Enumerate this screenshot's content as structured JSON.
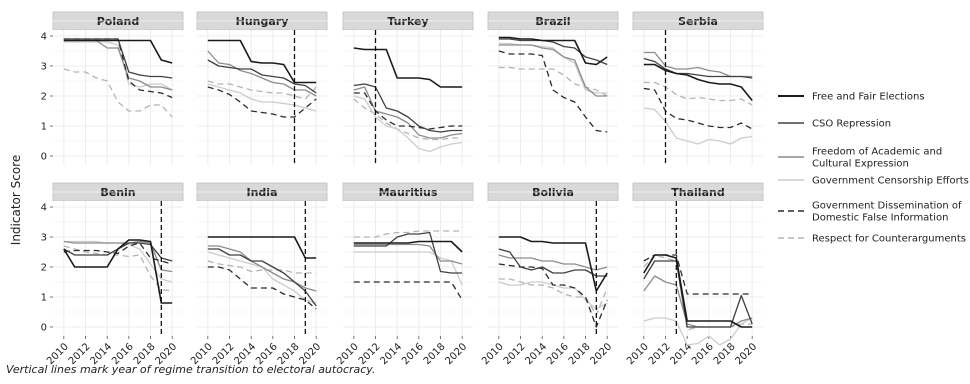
{
  "caption": "Vertical lines mark year of regime transition to electoral autocracy.",
  "colors": {
    "free_fair": "#1a1a1a",
    "cso": "#404040",
    "academic": "#8c8c8c",
    "censorship": "#cccccc",
    "dissemination": "#2b2b2b",
    "counterargs": "#b3b3b3"
  },
  "chart_data": {
    "type": "line",
    "ylabel": "Indicator Score",
    "x_ticks": [
      2010,
      2012,
      2014,
      2016,
      2018,
      2020
    ],
    "y_ticks": [
      0,
      1,
      2,
      3,
      4
    ],
    "ylim": [
      -0.3,
      4.2
    ],
    "xlim": [
      2009,
      2021
    ],
    "grid": true,
    "legend_position": "right",
    "legend": [
      {
        "key": "free_fair",
        "label_lines": [
          "Free and Fair Elections"
        ],
        "dash": "solid"
      },
      {
        "key": "cso",
        "label_lines": [
          "CSO Repression"
        ],
        "dash": "solid"
      },
      {
        "key": "academic",
        "label_lines": [
          "Freedom of Academic and",
          "Cultural Expression"
        ],
        "dash": "solid"
      },
      {
        "key": "censorship",
        "label_lines": [
          "Government Censorship Efforts"
        ],
        "dash": "solid"
      },
      {
        "key": "dissemination",
        "label_lines": [
          "Government Dissemination of",
          "Domestic False Information"
        ],
        "dash": "dashed"
      },
      {
        "key": "counterargs",
        "label_lines": [
          "Respect for Counterarguments"
        ],
        "dash": "dashed"
      }
    ],
    "x": [
      2010,
      2011,
      2012,
      2013,
      2014,
      2015,
      2016,
      2017,
      2018,
      2019,
      2020
    ],
    "panels": [
      {
        "country": "Poland",
        "transition": null,
        "series": {
          "free_fair": [
            3.85,
            3.85,
            3.85,
            3.85,
            3.85,
            3.85,
            3.85,
            3.85,
            3.85,
            3.2,
            3.1
          ],
          "cso": [
            3.9,
            3.9,
            3.9,
            3.9,
            3.9,
            3.9,
            2.8,
            2.7,
            2.65,
            2.65,
            2.6
          ],
          "academic": [
            3.85,
            3.85,
            3.85,
            3.85,
            3.6,
            3.6,
            2.6,
            2.5,
            2.3,
            2.3,
            2.2
          ],
          "censorship": [
            3.8,
            3.8,
            3.8,
            3.8,
            3.8,
            3.7,
            2.4,
            2.3,
            2.4,
            2.4,
            2.2
          ],
          "dissemination": [
            3.9,
            3.9,
            3.9,
            3.9,
            3.9,
            3.9,
            2.5,
            2.2,
            2.15,
            2.1,
            1.95
          ],
          "counterargs": [
            2.9,
            2.8,
            2.8,
            2.6,
            2.5,
            1.8,
            1.5,
            1.5,
            1.7,
            1.7,
            1.3
          ]
        }
      },
      {
        "country": "Hungary",
        "transition": 2018,
        "series": {
          "free_fair": [
            3.85,
            3.85,
            3.85,
            3.85,
            3.15,
            3.1,
            3.1,
            3.05,
            2.45,
            2.45,
            2.45
          ],
          "cso": [
            3.2,
            3.0,
            2.95,
            2.9,
            2.9,
            2.7,
            2.65,
            2.6,
            2.4,
            2.35,
            2.1
          ],
          "academic": [
            3.5,
            3.1,
            3.05,
            2.85,
            2.75,
            2.6,
            2.45,
            2.4,
            2.2,
            2.2,
            2.0
          ],
          "censorship": [
            2.4,
            2.3,
            2.2,
            2.1,
            1.9,
            1.8,
            1.8,
            1.75,
            1.7,
            1.6,
            1.5
          ],
          "dissemination": [
            2.3,
            2.2,
            2.05,
            1.8,
            1.5,
            1.45,
            1.4,
            1.3,
            1.3,
            1.6,
            1.9
          ],
          "counterargs": [
            2.5,
            2.4,
            2.4,
            2.3,
            2.2,
            2.15,
            2.1,
            2.1,
            2.0,
            1.9,
            2.3
          ]
        }
      },
      {
        "country": "Turkey",
        "transition": 2012,
        "series": {
          "free_fair": [
            3.6,
            3.55,
            3.55,
            3.55,
            2.6,
            2.6,
            2.6,
            2.55,
            2.3,
            2.3,
            2.3
          ],
          "cso": [
            2.35,
            2.4,
            2.3,
            1.6,
            1.5,
            1.3,
            1.0,
            0.85,
            0.8,
            0.85,
            0.85
          ],
          "academic": [
            2.2,
            2.3,
            1.5,
            1.4,
            1.3,
            1.1,
            0.7,
            0.6,
            0.6,
            0.7,
            0.75
          ],
          "censorship": [
            2.0,
            1.9,
            1.3,
            1.0,
            0.9,
            0.6,
            0.25,
            0.15,
            0.3,
            0.4,
            0.45
          ],
          "dissemination": [
            2.1,
            2.1,
            1.5,
            1.2,
            1.0,
            1.0,
            0.95,
            0.9,
            0.95,
            1.0,
            1.0
          ],
          "counterargs": [
            1.9,
            1.6,
            1.4,
            1.1,
            0.9,
            0.75,
            0.6,
            0.55,
            0.55,
            0.6,
            0.6
          ]
        }
      },
      {
        "country": "Brazil",
        "transition": null,
        "series": {
          "free_fair": [
            3.95,
            3.95,
            3.9,
            3.9,
            3.85,
            3.85,
            3.85,
            3.85,
            3.1,
            3.05,
            3.3
          ],
          "cso": [
            3.9,
            3.9,
            3.85,
            3.85,
            3.85,
            3.8,
            3.65,
            3.6,
            3.3,
            3.2,
            3.05
          ],
          "academic": [
            3.7,
            3.7,
            3.7,
            3.7,
            3.6,
            3.55,
            3.3,
            3.2,
            2.3,
            2.0,
            2.0
          ],
          "censorship": [
            3.75,
            3.75,
            3.7,
            3.7,
            3.65,
            3.6,
            3.3,
            3.1,
            2.2,
            2.1,
            2.1
          ],
          "dissemination": [
            3.5,
            3.4,
            3.4,
            3.4,
            3.35,
            2.2,
            1.95,
            1.8,
            1.3,
            0.85,
            0.8
          ],
          "counterargs": [
            2.95,
            2.95,
            2.9,
            2.9,
            2.9,
            2.9,
            2.7,
            2.4,
            2.3,
            2.2,
            2.0
          ]
        }
      },
      {
        "country": "Serbia",
        "transition": 2012,
        "series": {
          "free_fair": [
            3.05,
            3.05,
            2.85,
            2.75,
            2.7,
            2.55,
            2.45,
            2.4,
            2.4,
            2.3,
            1.85
          ],
          "cso": [
            3.25,
            3.15,
            2.9,
            2.75,
            2.75,
            2.7,
            2.65,
            2.65,
            2.65,
            2.65,
            2.6
          ],
          "academic": [
            3.45,
            3.45,
            3.0,
            2.9,
            2.9,
            2.95,
            2.85,
            2.8,
            2.65,
            2.65,
            2.65
          ],
          "censorship": [
            1.6,
            1.55,
            1.15,
            0.6,
            0.5,
            0.4,
            0.55,
            0.5,
            0.4,
            0.6,
            0.65
          ],
          "dissemination": [
            2.25,
            2.2,
            1.5,
            1.25,
            1.2,
            1.1,
            1.0,
            0.95,
            0.95,
            1.1,
            0.9
          ],
          "counterargs": [
            2.45,
            2.45,
            2.3,
            2.05,
            1.9,
            1.95,
            1.9,
            1.85,
            1.85,
            1.9,
            1.7
          ]
        }
      },
      {
        "country": "Benin",
        "transition": 2019,
        "series": {
          "free_fair": [
            2.6,
            2.0,
            2.0,
            2.0,
            2.0,
            2.6,
            2.9,
            2.9,
            2.85,
            0.8,
            0.8
          ],
          "cso": [
            2.6,
            2.4,
            2.4,
            2.4,
            2.4,
            2.6,
            2.8,
            2.8,
            2.75,
            2.3,
            2.2
          ],
          "academic": [
            2.85,
            2.8,
            2.8,
            2.8,
            2.8,
            2.8,
            2.8,
            2.85,
            2.8,
            1.9,
            1.85
          ],
          "censorship": [
            2.85,
            2.85,
            2.85,
            2.85,
            2.8,
            2.8,
            2.75,
            2.6,
            2.1,
            1.6,
            1.5
          ],
          "dissemination": [
            2.5,
            2.55,
            2.55,
            2.55,
            2.5,
            2.45,
            2.7,
            2.8,
            2.3,
            2.2,
            2.1
          ],
          "counterargs": [
            2.7,
            2.6,
            2.5,
            2.45,
            2.4,
            2.4,
            2.35,
            2.4,
            1.7,
            1.25,
            1.2
          ]
        }
      },
      {
        "country": "India",
        "transition": 2019,
        "series": {
          "free_fair": [
            3.0,
            3.0,
            3.0,
            3.0,
            3.0,
            3.0,
            3.0,
            3.0,
            3.0,
            2.3,
            2.3
          ],
          "cso": [
            2.6,
            2.6,
            2.4,
            2.4,
            2.2,
            2.2,
            2.0,
            1.8,
            1.5,
            1.2,
            0.7
          ],
          "academic": [
            2.7,
            2.7,
            2.6,
            2.5,
            2.2,
            2.0,
            1.8,
            1.6,
            1.5,
            1.3,
            1.2
          ],
          "censorship": [
            2.5,
            2.4,
            2.3,
            2.2,
            2.1,
            2.0,
            1.6,
            1.4,
            1.2,
            0.9,
            0.8
          ],
          "dissemination": [
            2.0,
            2.0,
            1.9,
            1.6,
            1.3,
            1.3,
            1.3,
            1.1,
            1.0,
            0.9,
            0.6
          ],
          "counterargs": [
            2.2,
            2.1,
            2.05,
            2.0,
            1.85,
            1.9,
            1.9,
            1.9,
            1.8,
            1.8,
            1.8
          ]
        }
      },
      {
        "country": "Mauritius",
        "transition": null,
        "series": {
          "free_fair": [
            2.8,
            2.8,
            2.8,
            2.8,
            2.8,
            2.8,
            2.85,
            2.85,
            2.85,
            2.85,
            2.5
          ],
          "cso": [
            2.7,
            2.7,
            2.7,
            2.7,
            3.0,
            3.1,
            3.1,
            3.15,
            1.85,
            1.8,
            1.8
          ],
          "academic": [
            2.75,
            2.75,
            2.75,
            2.75,
            2.75,
            2.75,
            2.75,
            2.7,
            2.2,
            2.2,
            2.1
          ],
          "censorship": [
            2.5,
            2.5,
            2.5,
            2.5,
            2.5,
            2.5,
            2.5,
            2.5,
            2.3,
            2.2,
            1.4
          ],
          "dissemination": [
            1.5,
            1.5,
            1.5,
            1.5,
            1.5,
            1.5,
            1.5,
            1.5,
            1.5,
            1.5,
            0.9
          ],
          "counterargs": [
            3.0,
            3.0,
            3.0,
            3.1,
            3.15,
            3.15,
            3.2,
            3.2,
            3.2,
            3.2,
            3.2
          ]
        }
      },
      {
        "country": "Bolivia",
        "transition": 2019,
        "series": {
          "free_fair": [
            3.0,
            3.0,
            3.0,
            2.85,
            2.85,
            2.8,
            2.8,
            2.8,
            2.8,
            1.2,
            1.8
          ],
          "cso": [
            2.6,
            2.5,
            2.0,
            1.9,
            2.0,
            1.8,
            1.8,
            1.9,
            1.9,
            1.7,
            1.7
          ],
          "academic": [
            2.4,
            2.3,
            2.3,
            2.3,
            2.2,
            2.2,
            2.1,
            2.1,
            2.0,
            1.9,
            2.0
          ],
          "censorship": [
            1.5,
            1.4,
            1.4,
            1.5,
            1.5,
            1.4,
            1.3,
            1.3,
            0.9,
            0.6,
            0.8
          ],
          "dissemination": [
            2.1,
            2.05,
            2.0,
            2.0,
            1.95,
            1.4,
            1.4,
            1.3,
            1.0,
            0.0,
            0.9
          ],
          "counterargs": [
            1.6,
            1.6,
            1.5,
            1.4,
            1.4,
            1.3,
            1.1,
            1.0,
            1.0,
            0.4,
            1.3
          ]
        }
      },
      {
        "country": "Thailand",
        "transition": 2013,
        "series": {
          "free_fair": [
            1.8,
            2.4,
            2.4,
            2.3,
            0.2,
            0.2,
            0.2,
            0.2,
            0.2,
            0.0,
            0.0
          ],
          "cso": [
            1.6,
            2.2,
            2.2,
            2.2,
            0.0,
            0.0,
            0.0,
            0.0,
            0.0,
            1.05,
            0.1
          ],
          "academic": [
            1.2,
            1.7,
            1.5,
            1.4,
            0.1,
            0.0,
            0.0,
            0.0,
            0.0,
            0.2,
            0.3
          ],
          "censorship": [
            0.2,
            0.3,
            0.3,
            0.2,
            -0.6,
            -0.55,
            -0.3,
            -0.6,
            -0.4,
            0.1,
            0.3
          ],
          "dissemination": [
            2.2,
            2.4,
            2.4,
            2.4,
            1.1,
            1.1,
            1.1,
            1.1,
            1.1,
            1.1,
            1.1
          ],
          "counterargs": [
            2.0,
            2.4,
            2.3,
            2.2,
            -0.1,
            0.0,
            0.0,
            0.0,
            0.0,
            0.1,
            0.1
          ]
        }
      }
    ]
  }
}
